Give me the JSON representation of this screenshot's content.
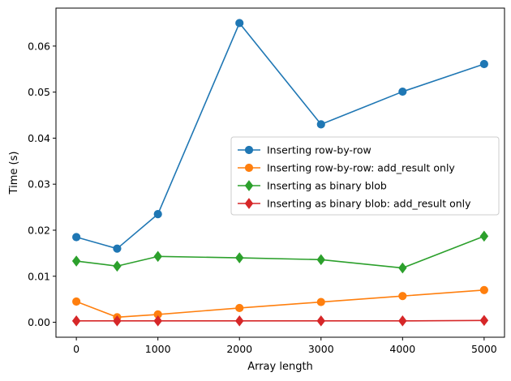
{
  "chart_data": {
    "type": "line",
    "xlabel": "Array length",
    "ylabel": "Time (s)",
    "xlim": [
      -250,
      5250
    ],
    "ylim": [
      -0.00325,
      0.06825
    ],
    "xticks": [
      0,
      1000,
      2000,
      3000,
      4000,
      5000
    ],
    "xtick_labels": [
      "0",
      "1000",
      "2000",
      "3000",
      "4000",
      "5000"
    ],
    "yticks": [
      0.0,
      0.01,
      0.02,
      0.03,
      0.04,
      0.05,
      0.06
    ],
    "ytick_labels": [
      "0.00",
      "0.01",
      "0.02",
      "0.03",
      "0.04",
      "0.05",
      "0.06"
    ],
    "grid": false,
    "legend_position": "center-right",
    "x": [
      0,
      500,
      1000,
      2000,
      3000,
      4000,
      5000
    ],
    "series": [
      {
        "name": "Inserting row-by-row",
        "color": "#1f77b4",
        "marker": "circle",
        "values": [
          0.0185,
          0.016,
          0.0235,
          0.065,
          0.043,
          0.0501,
          0.0561
        ]
      },
      {
        "name": "Inserting row-by-row: add_result only",
        "color": "#ff7f0e",
        "marker": "circle",
        "values": [
          0.0045,
          0.0011,
          0.0017,
          0.0031,
          0.0044,
          0.0057,
          0.007
        ]
      },
      {
        "name": "Inserting as binary blob",
        "color": "#2ca02c",
        "marker": "diamond",
        "values": [
          0.0133,
          0.0122,
          0.0143,
          0.014,
          0.0136,
          0.0118,
          0.0187
        ]
      },
      {
        "name": "Inserting as binary blob: add_result only",
        "color": "#d62728",
        "marker": "diamond",
        "values": [
          0.0003,
          0.0003,
          0.0003,
          0.0003,
          0.0003,
          0.0003,
          0.0004
        ]
      }
    ]
  }
}
